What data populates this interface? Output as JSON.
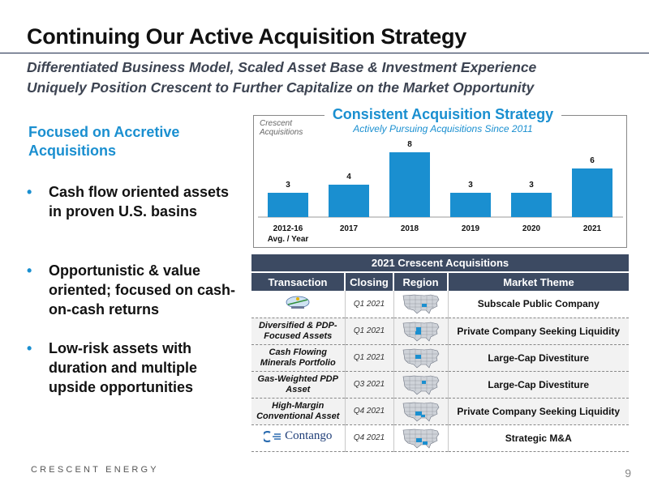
{
  "header": {
    "title": "Continuing Our Active Acquisition Strategy",
    "subtitle_line1": "Differentiated Business Model, Scaled Asset Base & Investment Experience",
    "subtitle_line2": "Uniquely Position Crescent to Further Capitalize on the Market Opportunity"
  },
  "left": {
    "heading": "Focused on Accretive Acquisitions",
    "bullets": [
      "Cash flow oriented assets in proven U.S. basins",
      "Opportunistic & value oriented; focused on cash-on-cash returns",
      "Low-risk assets with duration and multiple upside opportunities"
    ]
  },
  "chart_data": {
    "type": "bar",
    "title": "Consistent Acquisition Strategy",
    "subtitle": "Actively Pursuing Acquisitions Since 2011",
    "ylabel": "Crescent Acquisitions",
    "categories": [
      "2012-16 Avg. / Year",
      "2017",
      "2018",
      "2019",
      "2020",
      "2021"
    ],
    "values": [
      3,
      4,
      8,
      3,
      3,
      6
    ],
    "ylim": [
      0,
      8
    ],
    "grid": false,
    "legend": "none",
    "bar_color": "#1a8fd0"
  },
  "table": {
    "caption": "2021 Crescent Acquisitions",
    "headers": [
      "Transaction",
      "Closing",
      "Region",
      "Market Theme"
    ],
    "rows": [
      {
        "transaction": "",
        "logo": "company-logo",
        "closing": "Q1 2021",
        "theme": "Subscale Public Company"
      },
      {
        "transaction": "Diversified & PDP-Focused Assets",
        "closing": "Q1 2021",
        "theme": "Private Company Seeking Liquidity"
      },
      {
        "transaction": "Cash Flowing Minerals Portfolio",
        "closing": "Q1 2021",
        "theme": "Large-Cap Divestiture"
      },
      {
        "transaction": "Gas-Weighted PDP Asset",
        "closing": "Q3 2021",
        "theme": "Large-Cap Divestiture"
      },
      {
        "transaction": "High-Margin Conventional Asset",
        "closing": "Q4 2021",
        "theme": "Private Company Seeking Liquidity"
      },
      {
        "transaction": "Contango",
        "logo": "contango-logo",
        "closing": "Q4 2021",
        "theme": "Strategic M&A"
      }
    ]
  },
  "footer": {
    "brand": "CRESCENT ENERGY",
    "page": "9"
  },
  "colors": {
    "accent": "#1a8fd0",
    "table_header": "#3c4a62",
    "map_fill": "#cfd3d9",
    "map_highlight": "#1a8fd0"
  }
}
